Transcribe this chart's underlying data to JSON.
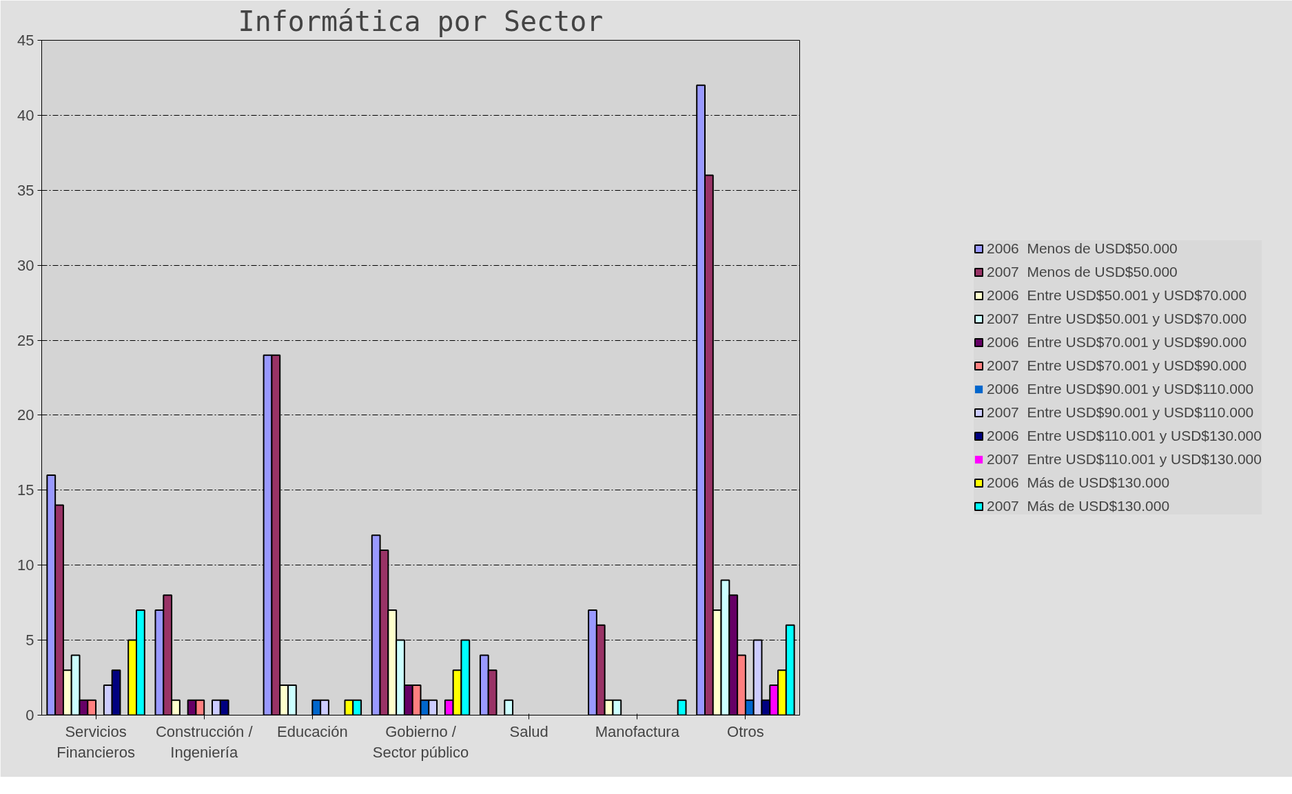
{
  "chart_data": {
    "type": "bar",
    "title": "Informática por Sector",
    "categories": [
      "Servicios Financieros",
      "Construcción / Ingeniería",
      "Educación",
      "Gobierno / Sector público",
      "Salud",
      "Manofactura",
      "Otros"
    ],
    "series": [
      {
        "name": "2006  Menos de USD$50.000",
        "color": "#9999ff",
        "values": [
          16,
          7,
          24,
          12,
          4,
          7,
          42
        ]
      },
      {
        "name": "2007  Menos de USD$50.000",
        "color": "#993366",
        "values": [
          14,
          8,
          24,
          11,
          3,
          6,
          36
        ]
      },
      {
        "name": "2006  Entre USD$50.001 y USD$70.000",
        "color": "#ffffcc",
        "values": [
          3,
          1,
          2,
          7,
          0,
          1,
          7
        ]
      },
      {
        "name": "2007  Entre USD$50.001 y USD$70.000",
        "color": "#ccffff",
        "values": [
          4,
          0,
          2,
          5,
          1,
          1,
          9
        ]
      },
      {
        "name": "2006  Entre USD$70.001 y USD$90.000",
        "color": "#660066",
        "values": [
          1,
          1,
          0,
          2,
          0,
          0,
          8
        ]
      },
      {
        "name": "2007  Entre USD$70.001 y USD$90.000",
        "color": "#ff8080",
        "values": [
          1,
          1,
          0,
          2,
          0,
          0,
          4
        ]
      },
      {
        "name": "2006  Entre USD$90.001 y USD$110.000",
        "color": "#0066cc",
        "values": [
          0,
          0,
          1,
          1,
          0,
          0,
          1
        ]
      },
      {
        "name": "2007  Entre USD$90.001 y USD$110.000",
        "color": "#ccccff",
        "values": [
          2,
          1,
          1,
          1,
          0,
          0,
          5
        ]
      },
      {
        "name": "2006  Entre USD$110.001 y USD$130.000",
        "color": "#000080",
        "values": [
          3,
          1,
          0,
          0,
          0,
          0,
          1
        ]
      },
      {
        "name": "2007  Entre USD$110.001 y USD$130.000",
        "color": "#ff00ff",
        "values": [
          0,
          0,
          0,
          1,
          0,
          0,
          2
        ]
      },
      {
        "name": "2006  Más de USD$130.000",
        "color": "#ffff00",
        "values": [
          5,
          0,
          1,
          3,
          0,
          0,
          3
        ]
      },
      {
        "name": "2007  Más de USD$130.000",
        "color": "#00ffff",
        "values": [
          7,
          0,
          1,
          5,
          0,
          1,
          6
        ]
      }
    ],
    "ylim": [
      0,
      45
    ],
    "yticks": [
      0,
      5,
      10,
      15,
      20,
      25,
      30,
      35,
      40,
      45
    ],
    "grid": "y",
    "legend": "right"
  }
}
